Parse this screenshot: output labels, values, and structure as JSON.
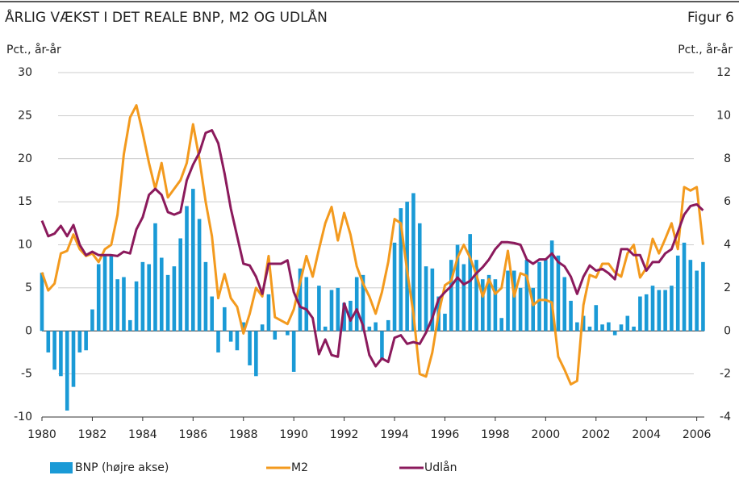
{
  "chart_data": {
    "type": "combo",
    "title": "ÅRLIG VÆKST I DET REALE BNP, M2 OG UDLÅN",
    "figure_label": "Figur 6",
    "y_label": "Pct., år-år",
    "y2_label": "Pct., år-år",
    "grid": true,
    "xlim": [
      1980,
      2006.3
    ],
    "xticks": [
      1980,
      1982,
      1984,
      1986,
      1988,
      1990,
      1992,
      1994,
      1996,
      1998,
      2000,
      2002,
      2004,
      2006
    ],
    "ylim": [
      -10,
      30
    ],
    "yticks": [
      -10,
      -5,
      0,
      5,
      10,
      15,
      20,
      25,
      30
    ],
    "y2lim": [
      -4,
      12
    ],
    "y2ticks": [
      -4,
      -2,
      0,
      2,
      4,
      6,
      8,
      10,
      12
    ],
    "x": [
      1980,
      1980.25,
      1980.5,
      1980.75,
      1981,
      1981.25,
      1981.5,
      1981.75,
      1982,
      1982.25,
      1982.5,
      1982.75,
      1983,
      1983.25,
      1983.5,
      1983.75,
      1984,
      1984.25,
      1984.5,
      1984.75,
      1985,
      1985.25,
      1985.5,
      1985.75,
      1986,
      1986.25,
      1986.5,
      1986.75,
      1987,
      1987.25,
      1987.5,
      1987.75,
      1988,
      1988.25,
      1988.5,
      1988.75,
      1989,
      1989.25,
      1989.5,
      1989.75,
      1990,
      1990.25,
      1990.5,
      1990.75,
      1991,
      1991.25,
      1991.5,
      1991.75,
      1992,
      1992.25,
      1992.5,
      1992.75,
      1993,
      1993.25,
      1993.5,
      1993.75,
      1994,
      1994.25,
      1994.5,
      1994.75,
      1995,
      1995.25,
      1995.5,
      1995.75,
      1996,
      1996.25,
      1996.5,
      1996.75,
      1997,
      1997.25,
      1997.5,
      1997.75,
      1998,
      1998.25,
      1998.5,
      1998.75,
      1999,
      1999.25,
      1999.5,
      1999.75,
      2000,
      2000.25,
      2000.5,
      2000.75,
      2001,
      2001.25,
      2001.5,
      2001.75,
      2002,
      2002.25,
      2002.5,
      2002.75,
      2003,
      2003.25,
      2003.5,
      2003.75,
      2004,
      2004.25,
      2004.5,
      2004.75,
      2005,
      2005.25,
      2005.5,
      2005.75,
      2006,
      2006.25
    ],
    "series": [
      {
        "name": "BNP (højre akse)",
        "type": "bar",
        "axis": "y2",
        "color": "#1a9ad6",
        "values": [
          2.7,
          -1,
          -1.8,
          -2.1,
          -3.7,
          -2.6,
          -1,
          -0.9,
          1,
          3.1,
          3.5,
          3.5,
          2.4,
          2.5,
          0.5,
          2.3,
          3.2,
          3.1,
          5,
          3.4,
          2.6,
          3,
          4.3,
          5.8,
          6.6,
          5.2,
          3.2,
          1.6,
          -1,
          1.1,
          -0.5,
          -0.9,
          0.4,
          -1.6,
          -2.1,
          0.3,
          1.7,
          -0.4,
          0,
          -0.2,
          -1.9,
          2.9,
          2.5,
          0,
          2.1,
          0.2,
          1.9,
          2,
          1.3,
          1.4,
          2.5,
          2.6,
          0.2,
          0.4,
          -1.3,
          0.5,
          4.1,
          5.7,
          6,
          6.4,
          5,
          3,
          2.9,
          1.6,
          0.8,
          3.3,
          4,
          3.1,
          4.5,
          3.3,
          2.4,
          2.6,
          2.4,
          0.6,
          2.8,
          2.8,
          2,
          3.3,
          2,
          3.2,
          3.3,
          4.2,
          3.5,
          2.5,
          1.4,
          0.4,
          0.7,
          0.2,
          1.2,
          0.3,
          0.4,
          -0.2,
          0.3,
          0.7,
          0.2,
          1.6,
          1.7,
          2.1,
          1.9,
          1.9,
          2.1,
          3.5,
          4.1,
          3.3,
          2.8,
          3.2
        ]
      },
      {
        "name": "M2",
        "type": "line",
        "color": "#f39a1e",
        "values": [
          6.8,
          4.7,
          5.5,
          9,
          9.3,
          11.2,
          9.5,
          8.7,
          9,
          8,
          9.5,
          10,
          13.5,
          20.5,
          24.8,
          26.2,
          23,
          19.5,
          16.5,
          19.5,
          15.5,
          16.5,
          17.5,
          19.5,
          24,
          20,
          15,
          11,
          3.8,
          6.6,
          3.8,
          2.8,
          -0.3,
          2,
          5,
          4,
          8.7,
          1.6,
          1.2,
          0.8,
          2.5,
          5.6,
          8.7,
          6.3,
          9.5,
          12.5,
          14.4,
          10.5,
          13.7,
          11.2,
          7.5,
          5.5,
          4,
          2,
          4.5,
          8,
          13,
          12.5,
          7,
          2,
          -5,
          -5.3,
          -2.5,
          2,
          5.3,
          5.8,
          8.5,
          10,
          8.5,
          6.5,
          4,
          6,
          4.3,
          5,
          9.3,
          4,
          6.7,
          6.4,
          3,
          3.6,
          3.6,
          3.3,
          -3,
          -4.5,
          -6.2,
          -5.8,
          3,
          6.5,
          6.2,
          7.8,
          7.8,
          6.8,
          6.3,
          9,
          10,
          6.2,
          7.3,
          10.7,
          9,
          10.7,
          12.5,
          9.5,
          16.7,
          16.3,
          16.7,
          10
        ]
      },
      {
        "name": "Udlån",
        "type": "line",
        "color": "#8b1a5c",
        "values": [
          12.8,
          11,
          11.3,
          12.2,
          11,
          12.3,
          10,
          8.8,
          9.2,
          8.8,
          8.8,
          8.8,
          8.7,
          9.2,
          9,
          11.8,
          13.2,
          15.8,
          16.5,
          15.8,
          13.8,
          13.5,
          13.8,
          17.5,
          19.3,
          20.7,
          23,
          23.3,
          21.8,
          18.3,
          14.2,
          11,
          7.8,
          7.6,
          6.3,
          4.3,
          7.8,
          7.8,
          7.8,
          8.2,
          4.5,
          2.8,
          2.5,
          1.5,
          -2.7,
          -1,
          -2.8,
          -3,
          3.2,
          1.2,
          2.5,
          0.6,
          -2.8,
          -4.1,
          -3.2,
          -3.6,
          -0.8,
          -0.5,
          -1.5,
          -1.3,
          -1.5,
          -0.2,
          1.5,
          3.7,
          4.5,
          5.2,
          6.2,
          5.4,
          5.8,
          6.7,
          7.4,
          8.3,
          9.5,
          10.3,
          10.3,
          10.2,
          10,
          8.3,
          7.8,
          8.3,
          8.3,
          9,
          8,
          7.5,
          6.3,
          4.3,
          6.3,
          7.6,
          7,
          7.2,
          6.7,
          6,
          9.5,
          9.5,
          8.8,
          8.8,
          7,
          8,
          8,
          9,
          9.5,
          11.5,
          13.5,
          14.5,
          14.7,
          14
        ]
      }
    ]
  }
}
